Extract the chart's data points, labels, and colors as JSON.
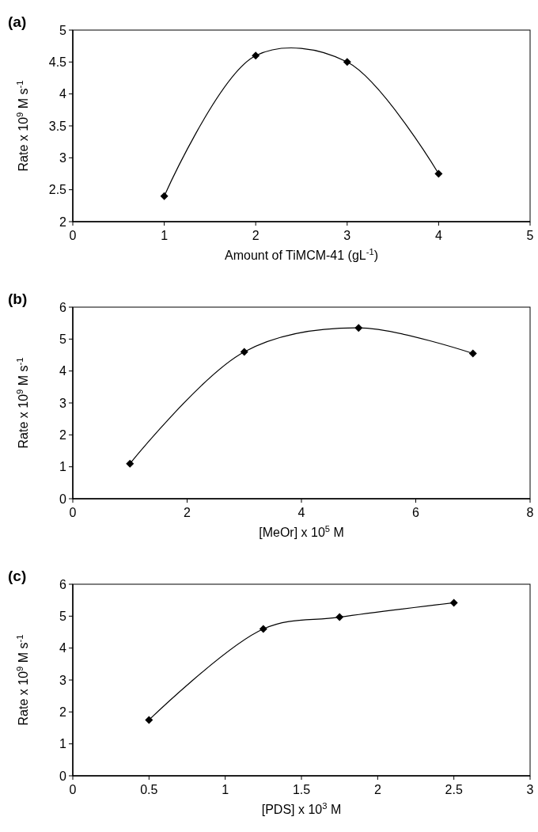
{
  "chart_data": [
    {
      "type": "line",
      "title": "(a)",
      "xlabel": "Amount of TiMCM-41 (gL$^{-1}$)",
      "ylabel": "Rate x 10$^{9}$ M s$^{-1}$",
      "x": [
        1,
        2,
        3,
        4
      ],
      "series": [
        {
          "color": "#000000",
          "values": [
            2.4,
            4.6,
            4.5,
            2.75
          ]
        }
      ],
      "xlim": [
        0,
        5
      ],
      "ylim": [
        2,
        5
      ],
      "xticks": [
        0,
        1,
        2,
        3,
        4,
        5
      ],
      "yticks": [
        2,
        2.5,
        3,
        3.5,
        4,
        4.5,
        5
      ],
      "marker": "diamond",
      "grid": false
    },
    {
      "type": "line",
      "title": "(b)",
      "xlabel": "[MeOr] x 10$^{5}$ M",
      "ylabel": "Rate x 10$^{9}$ M s$^{-1}$",
      "x": [
        1,
        3,
        5,
        7
      ],
      "series": [
        {
          "color": "#000000",
          "values": [
            1.1,
            4.6,
            5.35,
            4.55
          ]
        }
      ],
      "xlim": [
        0,
        8
      ],
      "ylim": [
        0,
        6
      ],
      "xticks": [
        0,
        2,
        4,
        6,
        8
      ],
      "yticks": [
        0,
        1,
        2,
        3,
        4,
        5,
        6
      ],
      "marker": "diamond",
      "grid": false
    },
    {
      "type": "line",
      "title": "(c)",
      "xlabel": "[PDS] x 10$^{3}$ M",
      "ylabel": "Rate x 10$^{9}$ M s$^{-1}$",
      "x": [
        0.5,
        1.25,
        1.75,
        2.5
      ],
      "series": [
        {
          "color": "#000000",
          "values": [
            1.75,
            4.6,
            4.97,
            5.42
          ]
        }
      ],
      "xlim": [
        0,
        3
      ],
      "ylim": [
        0,
        6
      ],
      "xticks": [
        0,
        0.5,
        1,
        1.5,
        2,
        2.5,
        3
      ],
      "yticks": [
        0,
        1,
        2,
        3,
        4,
        5,
        6
      ],
      "marker": "diamond",
      "grid": false
    }
  ]
}
